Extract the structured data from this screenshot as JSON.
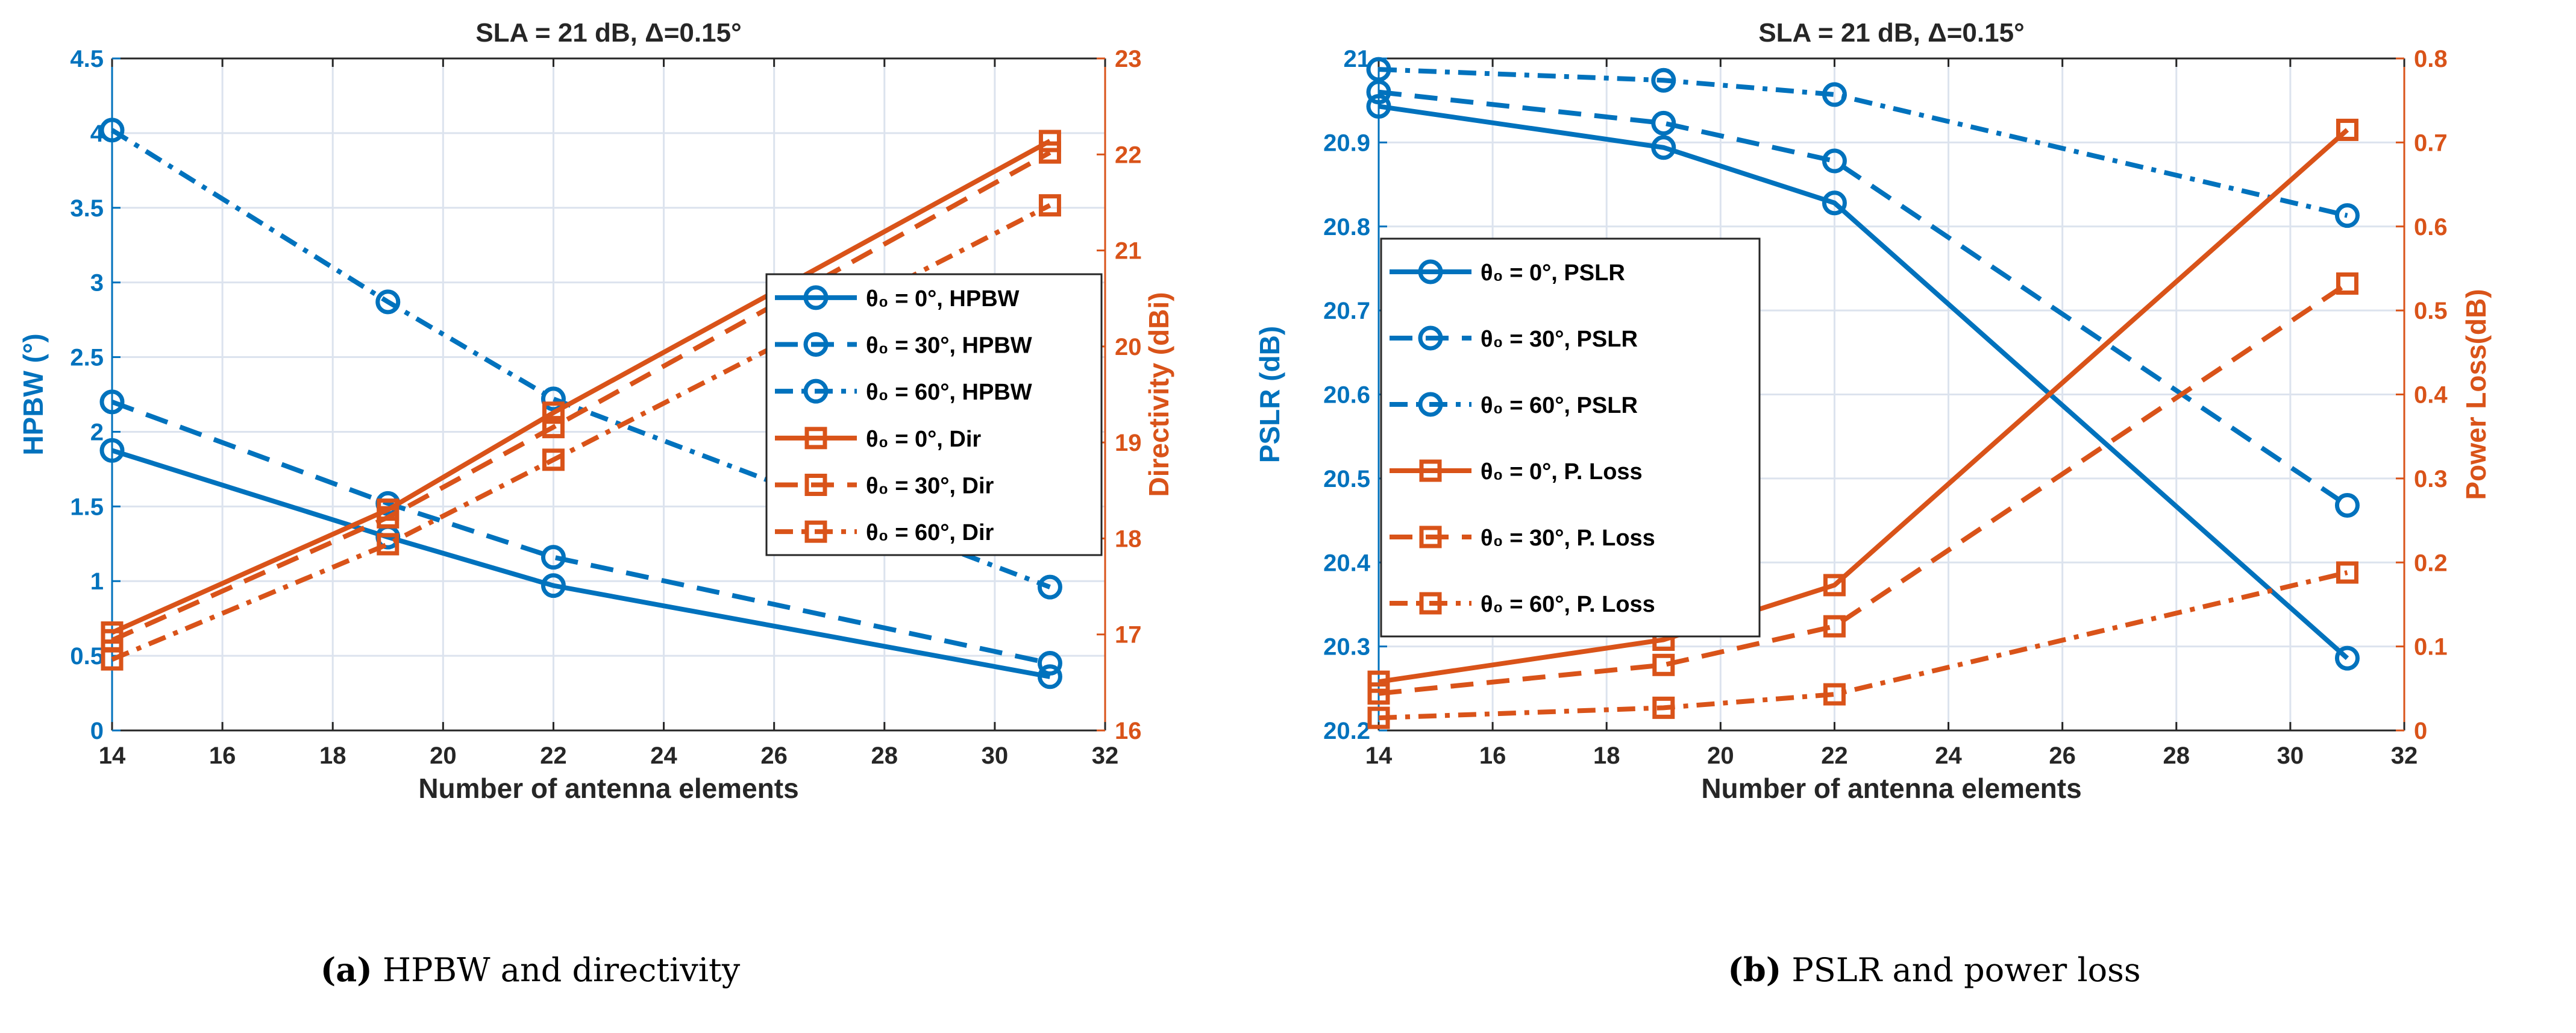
{
  "colors": {
    "blue": "#0072BD",
    "orange": "#D95319",
    "grid": "#DCE3EE"
  },
  "chart_data": [
    {
      "type": "line",
      "title": "SLA = 21 dB,  Δ=0.15°",
      "caption_bold": "(a)",
      "caption": " HPBW and directivity",
      "xlabel": "Number of antenna elements",
      "ylabel_left": "HPBW (°)",
      "ylabel_right": "Directivity (dBi)",
      "xlim": [
        14,
        32
      ],
      "ylim_left": [
        0,
        4.5
      ],
      "ylim_right": [
        16,
        23
      ],
      "xticks": [
        "14",
        "16",
        "18",
        "20",
        "22",
        "24",
        "26",
        "28",
        "30",
        "32"
      ],
      "yticks_left": [
        "0",
        "0.5",
        "1",
        "1.5",
        "2",
        "2.5",
        "3",
        "3.5",
        "4",
        "4.5"
      ],
      "yticks_right": [
        "16",
        "17",
        "18",
        "19",
        "20",
        "21",
        "22",
        "23"
      ],
      "grid": true,
      "legend_position": "center-right",
      "x": [
        14,
        19,
        22,
        31
      ],
      "series": [
        {
          "name": "θ₀ = 0°, HPBW",
          "axis": "left",
          "color": "blue",
          "style": "solid",
          "marker": "circle",
          "values": [
            1.875,
            1.295,
            0.97,
            0.36
          ]
        },
        {
          "name": "θ₀ = 30°, HPBW",
          "axis": "left",
          "color": "blue",
          "style": "dashed",
          "marker": "circle",
          "values": [
            2.2,
            1.52,
            1.16,
            0.45
          ]
        },
        {
          "name": "θ₀ = 60°, HPBW",
          "axis": "left",
          "color": "blue",
          "style": "dashdot",
          "marker": "circle",
          "values": [
            4.02,
            2.87,
            2.22,
            0.96
          ]
        },
        {
          "name": "θ₀ = 0°, Dir",
          "axis": "right",
          "color": "orange",
          "style": "solid",
          "marker": "square",
          "values": [
            17.02,
            18.3,
            19.31,
            22.14
          ]
        },
        {
          "name": "θ₀ = 30°, Dir",
          "axis": "right",
          "color": "orange",
          "style": "dashed",
          "marker": "square",
          "values": [
            16.94,
            18.22,
            19.16,
            22.02
          ]
        },
        {
          "name": "θ₀ = 60°, Dir",
          "axis": "right",
          "color": "orange",
          "style": "dashdot",
          "marker": "square",
          "values": [
            16.74,
            17.94,
            18.82,
            21.47
          ]
        }
      ]
    },
    {
      "type": "line",
      "title": "SLA = 21 dB,  Δ=0.15°",
      "caption_bold": "(b)",
      "caption": " PSLR and power loss",
      "xlabel": "Number of antenna elements",
      "ylabel_left": "PSLR (dB)",
      "ylabel_right": "Power Loss(dB)",
      "xlim": [
        14,
        32
      ],
      "ylim_left": [
        20.2,
        21
      ],
      "ylim_right": [
        0,
        0.8
      ],
      "xticks": [
        "14",
        "16",
        "18",
        "20",
        "22",
        "24",
        "26",
        "28",
        "30",
        "32"
      ],
      "yticks_left": [
        "20.2",
        "20.3",
        "20.4",
        "20.5",
        "20.6",
        "20.7",
        "20.8",
        "20.9",
        "21"
      ],
      "yticks_right": [
        "0",
        "0.1",
        "0.2",
        "0.3",
        "0.4",
        "0.5",
        "0.6",
        "0.7",
        "0.8"
      ],
      "grid": true,
      "legend_position": "center-left",
      "x": [
        14,
        19,
        22,
        31
      ],
      "series": [
        {
          "name": "θ₀ = 0°, PSLR",
          "axis": "left",
          "color": "blue",
          "style": "solid",
          "marker": "circle",
          "values": [
            20.943,
            20.894,
            20.828,
            20.286
          ]
        },
        {
          "name": "θ₀ = 30°, PSLR",
          "axis": "left",
          "color": "blue",
          "style": "dashed",
          "marker": "circle",
          "values": [
            20.96,
            20.923,
            20.878,
            20.468
          ]
        },
        {
          "name": "θ₀ = 60°, PSLR",
          "axis": "left",
          "color": "blue",
          "style": "dashdot",
          "marker": "circle",
          "values": [
            20.987,
            20.974,
            20.957,
            20.813
          ]
        },
        {
          "name": "θ₀ = 0°, P. Loss",
          "axis": "right",
          "color": "orange",
          "style": "solid",
          "marker": "square",
          "values": [
            0.058,
            0.108,
            0.173,
            0.715
          ]
        },
        {
          "name": "θ₀ = 30°, P. Loss",
          "axis": "right",
          "color": "orange",
          "style": "dashed",
          "marker": "square",
          "values": [
            0.044,
            0.078,
            0.124,
            0.532
          ]
        },
        {
          "name": "θ₀ = 60°, P. Loss",
          "axis": "right",
          "color": "orange",
          "style": "dashdot",
          "marker": "square",
          "values": [
            0.015,
            0.027,
            0.043,
            0.188
          ]
        }
      ]
    }
  ]
}
